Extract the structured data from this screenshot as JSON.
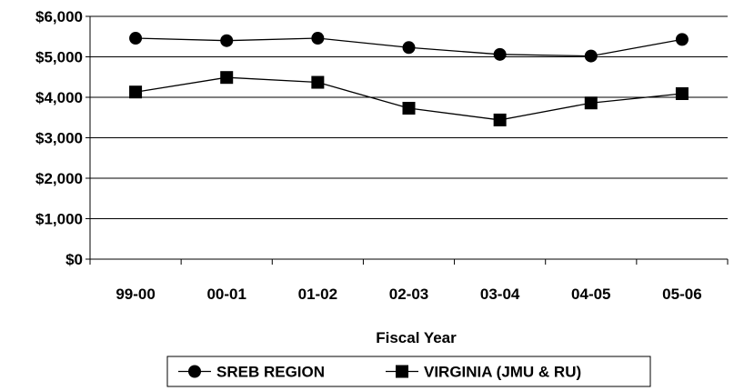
{
  "chart_data": {
    "type": "line",
    "title": "",
    "xlabel": "Fiscal Year",
    "ylabel": "",
    "categories": [
      "99-00",
      "00-01",
      "01-02",
      "02-03",
      "03-04",
      "04-05",
      "05-06"
    ],
    "ylim": [
      0,
      6000
    ],
    "yticks": [
      0,
      1000,
      2000,
      3000,
      4000,
      5000,
      6000
    ],
    "ytick_labels": [
      "$0",
      "$1,000",
      "$2,000",
      "$3,000",
      "$4,000",
      "$5,000",
      "$6,000"
    ],
    "grid": "horizontal",
    "legend_position": "bottom",
    "series": [
      {
        "name": "SREB REGION",
        "marker": "circle",
        "color": "#000000",
        "values": [
          5460,
          5400,
          5460,
          5230,
          5060,
          5020,
          5430
        ]
      },
      {
        "name": "VIRGINIA (JMU & RU)",
        "marker": "square",
        "color": "#000000",
        "values": [
          4130,
          4490,
          4370,
          3730,
          3440,
          3860,
          4090
        ]
      }
    ]
  }
}
